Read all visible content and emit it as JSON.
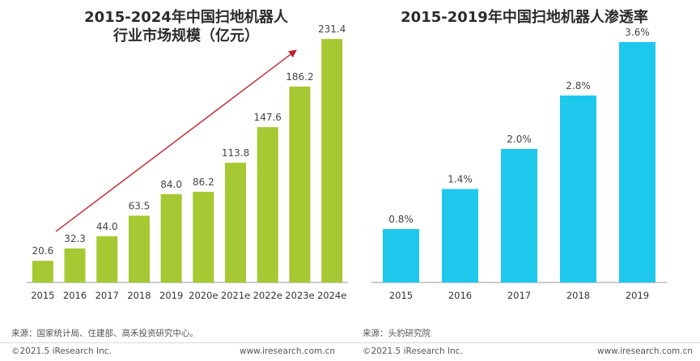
{
  "chart_data": [
    {
      "type": "bar",
      "title": [
        "2015-2024年中国扫地机器人",
        "行业市场规模（亿元）"
      ],
      "categories": [
        "2015",
        "2016",
        "2017",
        "2018",
        "2019",
        "2020e",
        "2021e",
        "2022e",
        "2023e",
        "2024e"
      ],
      "values": [
        20.6,
        32.3,
        44.0,
        63.5,
        84.0,
        86.2,
        113.8,
        147.6,
        186.2,
        231.4
      ],
      "value_labels": [
        "20.6",
        "32.3",
        "44.0",
        "63.5",
        "84.0",
        "86.2",
        "113.8",
        "147.6",
        "186.2",
        "231.4"
      ],
      "ylim": [
        0,
        250
      ],
      "bar_color": "#a6c832",
      "arrow_color": "#c0202a",
      "grid": false,
      "source": "来源：国家统计局、住建部、高禾投资研究中心。"
    },
    {
      "type": "bar",
      "title": [
        "2015-2019年中国扫地机器人渗透率"
      ],
      "categories": [
        "2015",
        "2016",
        "2017",
        "2018",
        "2019"
      ],
      "values": [
        0.8,
        1.4,
        2.0,
        2.8,
        3.6
      ],
      "value_labels": [
        "0.8%",
        "1.4%",
        "2.0%",
        "2.8%",
        "3.6%"
      ],
      "ylim": [
        0,
        4.0
      ],
      "bar_color": "#1ec8ec",
      "grid": false,
      "source": "来源：头豹研究院"
    }
  ],
  "footer": {
    "copyright_left": "©2021.5 iResearch Inc.",
    "url_left": "www.iresearch.com.cn",
    "copyright_right": "©2021.5 iResearch Inc.",
    "url_right": "www.iresearch.com.cn"
  },
  "axis_color": "#999999"
}
